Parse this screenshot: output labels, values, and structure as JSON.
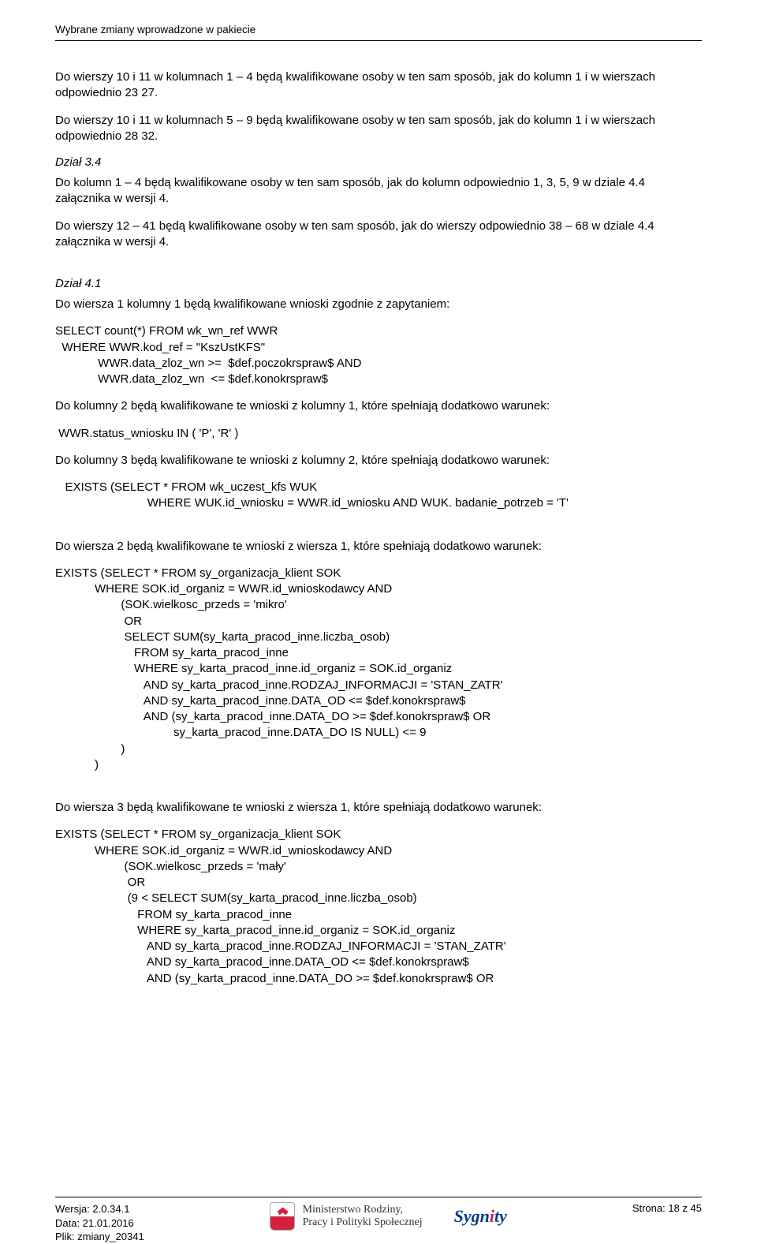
{
  "header": {
    "title": "Wybrane zmiany wprowadzone w pakiecie"
  },
  "body": {
    "p1": "Do wierszy 10 i 11 w kolumnach 1 – 4 będą kwalifikowane osoby w ten sam sposób, jak do kolumn 1 i w wierszach odpowiednio 23 27.",
    "p2": "Do wierszy 10 i 11 w kolumnach 5 – 9 będą kwalifikowane osoby w ten sam sposób, jak do kolumn 1 i w wierszach odpowiednio 28 32.",
    "h3_4": "Dział 3.4",
    "p3": "Do kolumn 1 – 4 będą kwalifikowane osoby w ten sam sposób, jak do kolumn odpowiednio 1, 3, 5, 9 w dziale 4.4 załącznika w wersji 4.",
    "p4": "Do wierszy 12 – 41 będą kwalifikowane osoby w ten sam sposób, jak do wierszy odpowiednio 38 – 68 w dziale 4.4 załącznika w wersji 4.",
    "h4_1": "Dział 4.1",
    "p5": "Do wiersza 1 kolumny 1 będą kwalifikowane wnioski zgodnie z zapytaniem:",
    "sql1": "SELECT count(*) FROM wk_wn_ref WWR\n  WHERE WWR.kod_ref = \"KszUstKFS\"\n             WWR.data_zloz_wn >=  $def.poczokrspraw$ AND\n             WWR.data_zloz_wn  <= $def.konokrspraw$",
    "p6": "Do kolumny 2 będą kwalifikowane te wnioski z kolumny 1, które spełniają dodatkowo warunek:",
    "sql2": " WWR.status_wniosku IN ( 'P', 'R' )",
    "p7": "Do kolumny 3 będą kwalifikowane te wnioski z kolumny 2, które spełniają dodatkowo warunek:",
    "sql3": "   EXISTS (SELECT * FROM wk_uczest_kfs WUK\n                            WHERE WUK.id_wniosku = WWR.id_wniosku AND WUK. badanie_potrzeb = 'T'",
    "p8": "Do wiersza 2 będą kwalifikowane te wnioski z wiersza 1, które spełniają dodatkowo warunek:",
    "sql4": "EXISTS (SELECT * FROM sy_organizacja_klient SOK\n            WHERE SOK.id_organiz = WWR.id_wnioskodawcy AND\n                    (SOK.wielkosc_przeds = 'mikro'\n                     OR\n                     SELECT SUM(sy_karta_pracod_inne.liczba_osob)\n                        FROM sy_karta_pracod_inne\n                        WHERE sy_karta_pracod_inne.id_organiz = SOK.id_organiz\n                           AND sy_karta_pracod_inne.RODZAJ_INFORMACJI = 'STAN_ZATR'\n                           AND sy_karta_pracod_inne.DATA_OD <= $def.konokrspraw$\n                           AND (sy_karta_pracod_inne.DATA_DO >= $def.konokrspraw$ OR\n                                    sy_karta_pracod_inne.DATA_DO IS NULL) <= 9\n                    )\n            )",
    "p9": "Do wiersza 3 będą kwalifikowane te wnioski z wiersza 1, które spełniają dodatkowo warunek:",
    "sql5": "EXISTS (SELECT * FROM sy_organizacja_klient SOK\n            WHERE SOK.id_organiz = WWR.id_wnioskodawcy AND\n                     (SOK.wielkosc_przeds = 'mały'\n                      OR\n                      (9 < SELECT SUM(sy_karta_pracod_inne.liczba_osob)\n                         FROM sy_karta_pracod_inne\n                         WHERE sy_karta_pracod_inne.id_organiz = SOK.id_organiz\n                            AND sy_karta_pracod_inne.RODZAJ_INFORMACJI = 'STAN_ZATR'\n                            AND sy_karta_pracod_inne.DATA_OD <= $def.konokrspraw$\n                            AND (sy_karta_pracod_inne.DATA_DO >= $def.konokrspraw$ OR"
  },
  "footer": {
    "version_label": "Wersja: 2.0.34.1",
    "date_label": "Data: 21.01.2016",
    "file_label": "Plik: zmiany_20341",
    "ministry_line1": "Ministerstwo Rodziny,",
    "ministry_line2": "Pracy i Polityki Społecznej",
    "page_label": "Strona: 18 z 45",
    "logo_text_main": "Sygn",
    "logo_text_i": "i",
    "logo_text_end": "ty"
  }
}
